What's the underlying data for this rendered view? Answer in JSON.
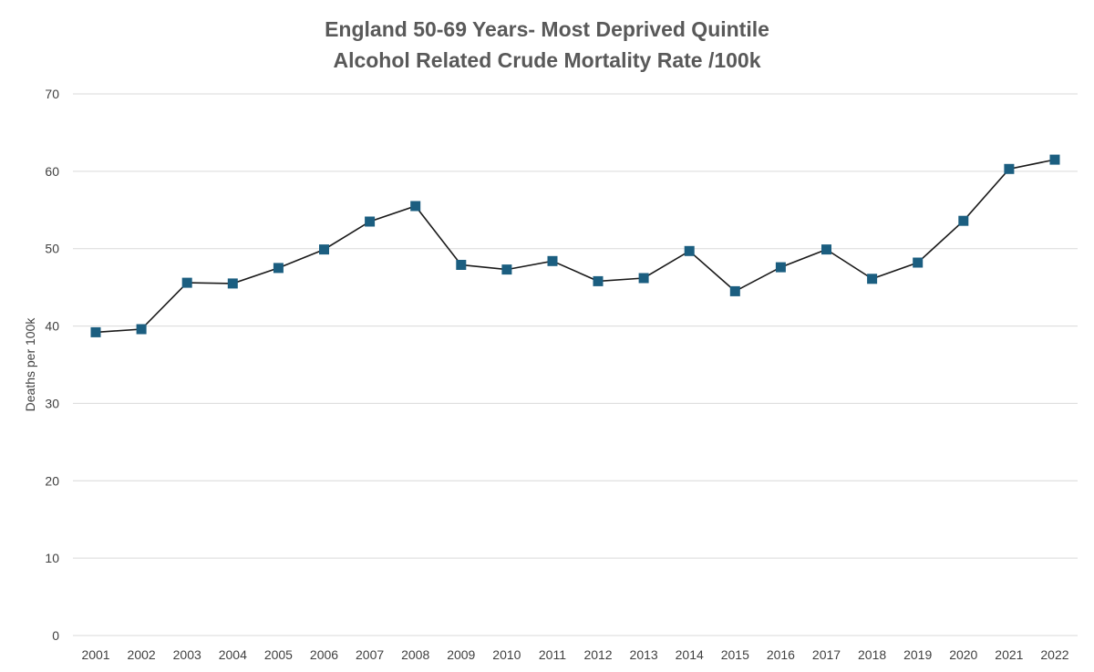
{
  "chart_data": {
    "type": "line",
    "title_lines": [
      "England 50-69 Years- Most Deprived Quintile",
      "Alcohol Related Crude Mortality Rate /100k"
    ],
    "xlabel": "",
    "ylabel": "Deaths per 100k",
    "categories": [
      "2001",
      "2002",
      "2003",
      "2004",
      "2005",
      "2006",
      "2007",
      "2008",
      "2009",
      "2010",
      "2011",
      "2012",
      "2013",
      "2014",
      "2015",
      "2016",
      "2017",
      "2018",
      "2019",
      "2020",
      "2021",
      "2022"
    ],
    "series": [
      {
        "values": [
          39.2,
          39.6,
          45.6,
          45.5,
          47.5,
          49.9,
          53.5,
          55.5,
          47.9,
          47.3,
          48.4,
          45.8,
          46.2,
          49.7,
          44.5,
          47.6,
          49.9,
          46.1,
          48.2,
          53.6,
          60.3,
          61.5
        ],
        "line_color": "#1a1a1a",
        "marker": "square",
        "marker_color": "#1b5e80"
      }
    ],
    "ylim": [
      0,
      70
    ],
    "yticks": [
      "0",
      "10",
      "20",
      "30",
      "40",
      "50",
      "60",
      "70"
    ],
    "grid": true,
    "legend": "none"
  }
}
